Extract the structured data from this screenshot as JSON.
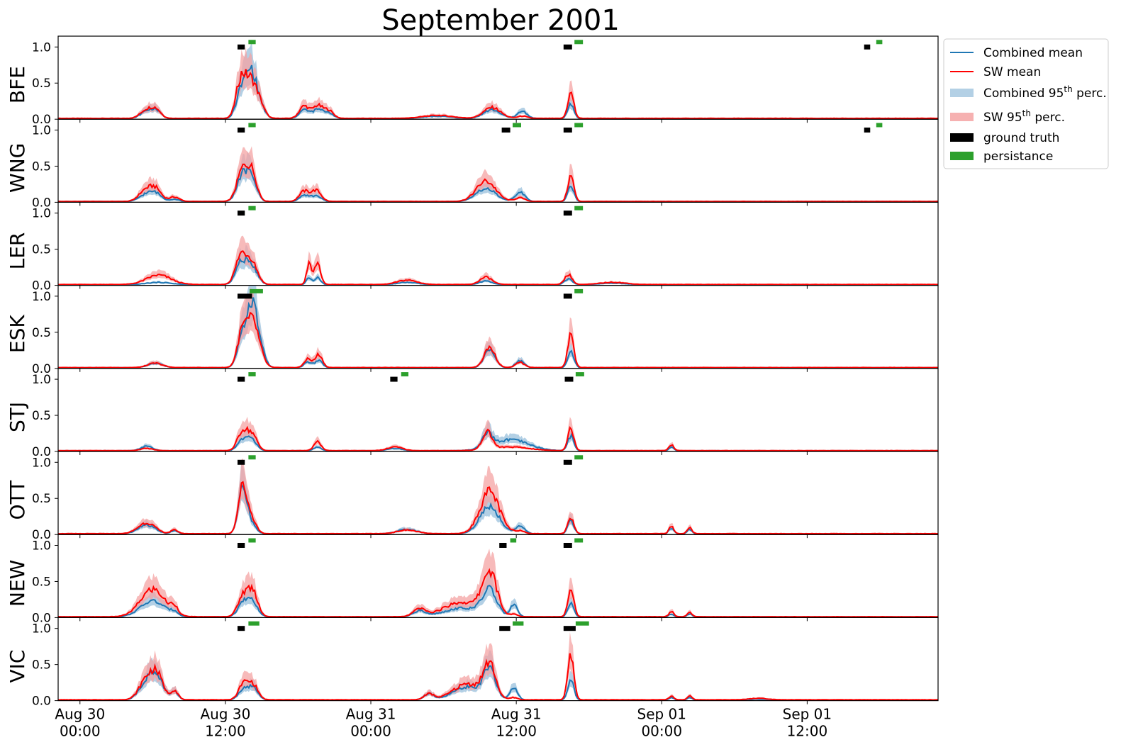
{
  "chart_data": {
    "type": "line",
    "title": "September 2001",
    "x_tick_labels": [
      {
        "date": "Aug 30",
        "time": "00:00"
      },
      {
        "date": "Aug 30",
        "time": "12:00"
      },
      {
        "date": "Aug 31",
        "time": "00:00"
      },
      {
        "date": "Aug 31",
        "time": "12:00"
      },
      {
        "date": "Sep 01",
        "time": "00:00"
      },
      {
        "date": "Sep 01",
        "time": "12:00"
      }
    ],
    "x_range_hours": [
      -1.8,
      70.8
    ],
    "ylim": [
      0,
      1.15
    ],
    "y_ticks": [
      "0.0",
      "0.5",
      "1.0"
    ],
    "colors": {
      "combined_mean": "#1f77b4",
      "sw_mean": "#ff0000",
      "combined_band": "#a6c8e0",
      "sw_band": "#f4a3a3",
      "ground_truth": "#000000",
      "persistence": "#2ca02c"
    },
    "legend": {
      "position": "top-right-outside",
      "items": [
        {
          "key": "combined_mean",
          "label": "Combined mean",
          "kind": "line"
        },
        {
          "key": "sw_mean",
          "label": "SW mean",
          "kind": "line"
        },
        {
          "key": "combined_band",
          "label": "Combined 95",
          "sup": "th",
          "suffix": " perc.",
          "kind": "patch"
        },
        {
          "key": "sw_band",
          "label": "SW 95",
          "sup": "th",
          "suffix": " perc.",
          "kind": "patch"
        },
        {
          "key": "ground_truth",
          "label": "ground truth",
          "kind": "patch"
        },
        {
          "key": "persistence",
          "label": "persistance",
          "kind": "patch"
        }
      ]
    },
    "series_note_hours_are_from_Aug30_00": true,
    "panels": [
      {
        "station": "BFE",
        "gt": [
          [
            13.0,
            13.6
          ],
          [
            39.9,
            40.6
          ],
          [
            64.7,
            65.2
          ]
        ],
        "ps": [
          [
            13.9,
            14.5
          ],
          [
            40.8,
            41.5
          ],
          [
            65.7,
            66.2
          ]
        ],
        "peaks": [
          {
            "t": 5.5,
            "sw": 0.12,
            "c": 0.1,
            "w": 0.5
          },
          {
            "t": 6.3,
            "sw": 0.11,
            "c": 0.1,
            "w": 0.4
          },
          {
            "t": 13.3,
            "sw": 0.55,
            "c": 0.38,
            "w": 0.4
          },
          {
            "t": 14.1,
            "sw": 0.45,
            "c": 0.6,
            "w": 0.4
          },
          {
            "t": 14.8,
            "sw": 0.22,
            "c": 0.2,
            "w": 0.4
          },
          {
            "t": 18.5,
            "sw": 0.17,
            "c": 0.12,
            "w": 0.4
          },
          {
            "t": 19.6,
            "sw": 0.17,
            "c": 0.12,
            "w": 0.4
          },
          {
            "t": 20.5,
            "sw": 0.11,
            "c": 0.08,
            "w": 0.4
          },
          {
            "t": 29.5,
            "sw": 0.04,
            "c": 0.03,
            "w": 1.2
          },
          {
            "t": 34.0,
            "sw": 0.15,
            "c": 0.12,
            "w": 0.7
          },
          {
            "t": 36.5,
            "sw": 0.03,
            "c": 0.1,
            "w": 0.4
          },
          {
            "t": 40.5,
            "sw": 0.35,
            "c": 0.2,
            "w": 0.25
          }
        ]
      },
      {
        "station": "WNG",
        "gt": [
          [
            13.0,
            13.6
          ],
          [
            34.8,
            35.5
          ],
          [
            39.9,
            40.6
          ],
          [
            64.7,
            65.2
          ]
        ],
        "ps": [
          [
            13.9,
            14.5
          ],
          [
            35.7,
            36.4
          ],
          [
            40.8,
            41.5
          ],
          [
            65.7,
            66.2
          ]
        ],
        "peaks": [
          {
            "t": 5.3,
            "sw": 0.13,
            "c": 0.08,
            "w": 0.5
          },
          {
            "t": 6.2,
            "sw": 0.18,
            "c": 0.12,
            "w": 0.5
          },
          {
            "t": 7.8,
            "sw": 0.06,
            "c": 0.03,
            "w": 0.4
          },
          {
            "t": 13.4,
            "sw": 0.42,
            "c": 0.36,
            "w": 0.45
          },
          {
            "t": 14.2,
            "sw": 0.38,
            "c": 0.3,
            "w": 0.4
          },
          {
            "t": 18.5,
            "sw": 0.14,
            "c": 0.08,
            "w": 0.4
          },
          {
            "t": 19.5,
            "sw": 0.15,
            "c": 0.08,
            "w": 0.4
          },
          {
            "t": 33.5,
            "sw": 0.28,
            "c": 0.18,
            "w": 0.8
          },
          {
            "t": 36.3,
            "sw": 0.05,
            "c": 0.13,
            "w": 0.4
          },
          {
            "t": 40.5,
            "sw": 0.35,
            "c": 0.22,
            "w": 0.25
          }
        ]
      },
      {
        "station": "LER",
        "gt": [
          [
            13.0,
            13.6
          ],
          [
            39.9,
            40.6
          ]
        ],
        "ps": [
          [
            13.9,
            14.5
          ],
          [
            40.8,
            41.5
          ]
        ],
        "peaks": [
          {
            "t": 6.5,
            "sw": 0.13,
            "c": 0.03,
            "w": 1.0
          },
          {
            "t": 13.3,
            "sw": 0.4,
            "c": 0.3,
            "w": 0.45
          },
          {
            "t": 14.2,
            "sw": 0.3,
            "c": 0.25,
            "w": 0.45
          },
          {
            "t": 18.9,
            "sw": 0.28,
            "c": 0.1,
            "w": 0.2
          },
          {
            "t": 19.6,
            "sw": 0.3,
            "c": 0.1,
            "w": 0.25
          },
          {
            "t": 27.0,
            "sw": 0.06,
            "c": 0.03,
            "w": 0.8
          },
          {
            "t": 33.5,
            "sw": 0.1,
            "c": 0.05,
            "w": 0.5
          },
          {
            "t": 40.3,
            "sw": 0.14,
            "c": 0.08,
            "w": 0.3
          },
          {
            "t": 44.0,
            "sw": 0.03,
            "c": 0.02,
            "w": 1.0
          }
        ]
      },
      {
        "station": "ESK",
        "gt": [
          [
            13.0,
            14.2
          ],
          [
            39.9,
            40.6
          ]
        ],
        "ps": [
          [
            14.0,
            15.1
          ],
          [
            40.8,
            41.5
          ]
        ],
        "peaks": [
          {
            "t": 6.2,
            "sw": 0.06,
            "c": 0.06,
            "w": 0.6
          },
          {
            "t": 13.4,
            "sw": 0.5,
            "c": 0.45,
            "w": 0.4
          },
          {
            "t": 14.2,
            "sw": 0.55,
            "c": 0.72,
            "w": 0.4
          },
          {
            "t": 14.8,
            "sw": 0.2,
            "c": 0.3,
            "w": 0.4
          },
          {
            "t": 18.8,
            "sw": 0.12,
            "c": 0.08,
            "w": 0.3
          },
          {
            "t": 19.7,
            "sw": 0.18,
            "c": 0.1,
            "w": 0.3
          },
          {
            "t": 33.8,
            "sw": 0.28,
            "c": 0.25,
            "w": 0.45
          },
          {
            "t": 36.3,
            "sw": 0.07,
            "c": 0.1,
            "w": 0.35
          },
          {
            "t": 40.5,
            "sw": 0.45,
            "c": 0.23,
            "w": 0.25
          }
        ]
      },
      {
        "station": "STJ",
        "gt": [
          [
            13.0,
            13.6
          ],
          [
            25.6,
            26.2
          ],
          [
            40.0,
            40.7
          ]
        ],
        "ps": [
          [
            13.9,
            14.5
          ],
          [
            26.5,
            27.1
          ],
          [
            40.9,
            41.6
          ]
        ],
        "peaks": [
          {
            "t": 5.5,
            "sw": 0.03,
            "c": 0.06,
            "w": 0.5
          },
          {
            "t": 13.4,
            "sw": 0.26,
            "c": 0.15,
            "w": 0.4
          },
          {
            "t": 14.2,
            "sw": 0.22,
            "c": 0.15,
            "w": 0.4
          },
          {
            "t": 19.6,
            "sw": 0.12,
            "c": 0.05,
            "w": 0.3
          },
          {
            "t": 26.0,
            "sw": 0.05,
            "c": 0.03,
            "w": 0.6
          },
          {
            "t": 33.6,
            "sw": 0.24,
            "c": 0.18,
            "w": 0.4
          },
          {
            "t": 35.5,
            "sw": 0.05,
            "c": 0.15,
            "w": 1.5
          },
          {
            "t": 40.5,
            "sw": 0.3,
            "c": 0.2,
            "w": 0.25
          },
          {
            "t": 48.8,
            "sw": 0.08,
            "c": 0.05,
            "w": 0.2
          }
        ]
      },
      {
        "station": "OTT",
        "gt": [
          [
            13.0,
            13.6
          ],
          [
            39.9,
            40.6
          ]
        ],
        "ps": [
          [
            13.9,
            14.5
          ],
          [
            40.8,
            41.5
          ]
        ],
        "peaks": [
          {
            "t": 5.5,
            "sw": 0.15,
            "c": 0.12,
            "w": 0.7
          },
          {
            "t": 7.8,
            "sw": 0.05,
            "c": 0.04,
            "w": 0.3
          },
          {
            "t": 13.4,
            "sw": 0.62,
            "c": 0.6,
            "w": 0.35
          },
          {
            "t": 14.1,
            "sw": 0.22,
            "c": 0.15,
            "w": 0.4
          },
          {
            "t": 27.0,
            "sw": 0.05,
            "c": 0.06,
            "w": 0.8
          },
          {
            "t": 33.8,
            "sw": 0.58,
            "c": 0.38,
            "w": 0.8
          },
          {
            "t": 36.3,
            "sw": 0.04,
            "c": 0.1,
            "w": 0.4
          },
          {
            "t": 40.5,
            "sw": 0.22,
            "c": 0.18,
            "w": 0.25
          },
          {
            "t": 48.8,
            "sw": 0.1,
            "c": 0.08,
            "w": 0.2
          },
          {
            "t": 50.3,
            "sw": 0.08,
            "c": 0.06,
            "w": 0.2
          }
        ]
      },
      {
        "station": "NEW",
        "gt": [
          [
            13.0,
            13.6
          ],
          [
            34.6,
            35.2
          ],
          [
            39.9,
            40.6
          ]
        ],
        "ps": [
          [
            13.9,
            14.5
          ],
          [
            35.5,
            36.0
          ],
          [
            40.8,
            41.5
          ]
        ],
        "peaks": [
          {
            "t": 6.0,
            "sw": 0.38,
            "c": 0.22,
            "w": 1.0
          },
          {
            "t": 7.8,
            "sw": 0.1,
            "c": 0.05,
            "w": 0.3
          },
          {
            "t": 13.5,
            "sw": 0.3,
            "c": 0.2,
            "w": 0.45
          },
          {
            "t": 14.3,
            "sw": 0.32,
            "c": 0.18,
            "w": 0.4
          },
          {
            "t": 28.0,
            "sw": 0.1,
            "c": 0.08,
            "w": 0.5
          },
          {
            "t": 31.5,
            "sw": 0.2,
            "c": 0.12,
            "w": 1.5
          },
          {
            "t": 33.8,
            "sw": 0.58,
            "c": 0.35,
            "w": 0.6
          },
          {
            "t": 35.8,
            "sw": 0.03,
            "c": 0.16,
            "w": 0.3
          },
          {
            "t": 40.5,
            "sw": 0.38,
            "c": 0.18,
            "w": 0.25
          },
          {
            "t": 48.8,
            "sw": 0.07,
            "c": 0.04,
            "w": 0.2
          },
          {
            "t": 50.3,
            "sw": 0.06,
            "c": 0.04,
            "w": 0.2
          }
        ]
      },
      {
        "station": "VIC",
        "gt": [
          [
            13.0,
            13.6
          ],
          [
            34.6,
            35.5
          ],
          [
            39.9,
            40.9
          ]
        ],
        "ps": [
          [
            13.9,
            14.8
          ],
          [
            35.7,
            36.6
          ],
          [
            40.9,
            42.0
          ]
        ],
        "peaks": [
          {
            "t": 5.5,
            "sw": 0.28,
            "c": 0.25,
            "w": 0.6
          },
          {
            "t": 6.4,
            "sw": 0.3,
            "c": 0.28,
            "w": 0.5
          },
          {
            "t": 7.8,
            "sw": 0.13,
            "c": 0.12,
            "w": 0.3
          },
          {
            "t": 13.5,
            "sw": 0.22,
            "c": 0.15,
            "w": 0.4
          },
          {
            "t": 14.3,
            "sw": 0.2,
            "c": 0.16,
            "w": 0.4
          },
          {
            "t": 28.8,
            "sw": 0.08,
            "c": 0.08,
            "w": 0.4
          },
          {
            "t": 32.0,
            "sw": 0.22,
            "c": 0.18,
            "w": 1.2
          },
          {
            "t": 33.8,
            "sw": 0.45,
            "c": 0.38,
            "w": 0.5
          },
          {
            "t": 35.8,
            "sw": 0.03,
            "c": 0.18,
            "w": 0.3
          },
          {
            "t": 40.5,
            "sw": 0.62,
            "c": 0.28,
            "w": 0.25
          },
          {
            "t": 48.8,
            "sw": 0.05,
            "c": 0.03,
            "w": 0.2
          },
          {
            "t": 50.3,
            "sw": 0.05,
            "c": 0.03,
            "w": 0.2
          },
          {
            "t": 56.0,
            "sw": 0.02,
            "c": 0.01,
            "w": 0.8
          }
        ]
      }
    ]
  }
}
